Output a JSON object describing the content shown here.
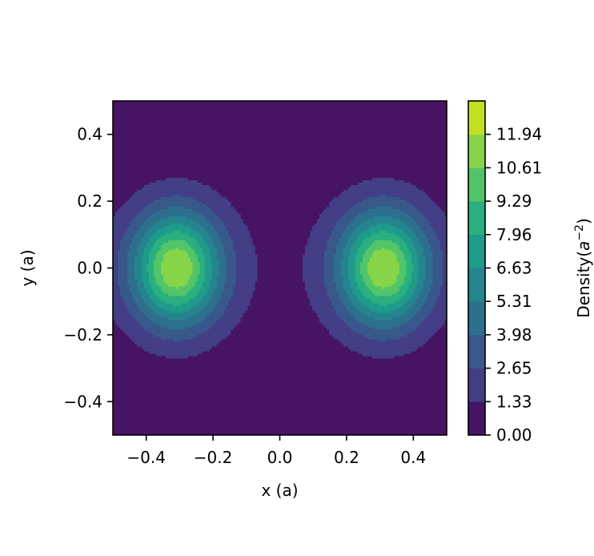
{
  "chart_data": {
    "type": "contour",
    "title": "",
    "xlabel": "x (a)",
    "ylabel": "y (a)",
    "xlim": [
      -0.5,
      0.5
    ],
    "ylim": [
      -0.5,
      0.5
    ],
    "xticks": [
      -0.4,
      -0.2,
      0.0,
      0.2,
      0.4
    ],
    "xtick_labels": [
      "−0.4",
      "−0.2",
      "0.0",
      "0.2",
      "0.4"
    ],
    "yticks": [
      -0.4,
      -0.2,
      0.0,
      0.2,
      0.4
    ],
    "ytick_labels": [
      "−0.4",
      "−0.2",
      "0.0",
      "0.2",
      "0.4"
    ],
    "peaks": [
      {
        "x": -0.31,
        "y": 0.0,
        "density": 11.94
      },
      {
        "x": 0.31,
        "y": 0.0,
        "density": 11.94
      }
    ],
    "colorbar": {
      "label_prefix": "Density(",
      "label_var": "a",
      "label_exp": "−2",
      "label_suffix": ")",
      "levels": [
        0.0,
        1.33,
        2.65,
        3.98,
        5.31,
        6.63,
        7.96,
        9.29,
        10.61,
        11.94
      ],
      "level_labels": [
        "0.00",
        "1.33",
        "2.65",
        "3.98",
        "5.31",
        "6.63",
        "7.96",
        "9.29",
        "10.61",
        "11.94"
      ],
      "colors": [
        "#471365",
        "#433e85",
        "#38588c",
        "#2d708e",
        "#25858e",
        "#1e9b8a",
        "#2ab07f",
        "#52c569",
        "#86d549",
        "#c2df23"
      ],
      "colormap": "viridis"
    }
  }
}
